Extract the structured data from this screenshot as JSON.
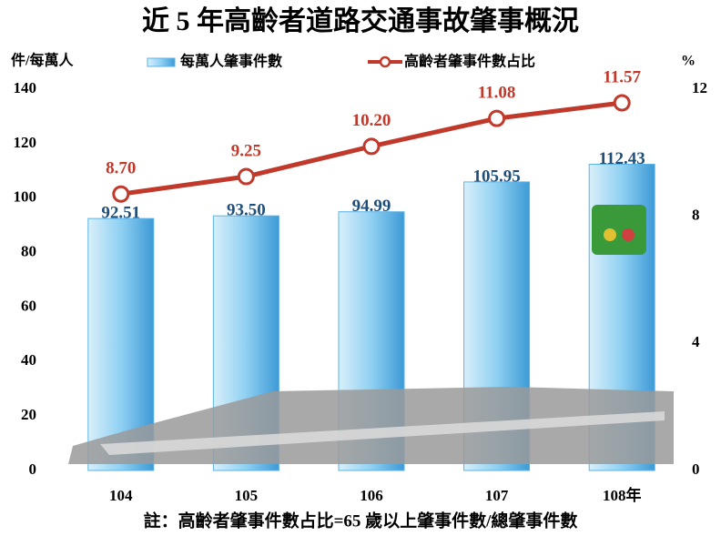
{
  "chart_data": {
    "type": "bar",
    "title": "近 5 年高齡者道路交通事故肇事概況",
    "y_label": "件/每萬人",
    "y2_label": "%",
    "footnote": "註：高齡者肇事件數占比=65 歲以上肇事件數/總肇事件數",
    "categories": [
      "104",
      "105",
      "106",
      "107",
      "108年"
    ],
    "series": [
      {
        "name": "每萬人肇事件數",
        "type": "bar",
        "color": "#5bb3e6",
        "values": [
          92.51,
          93.5,
          94.99,
          105.95,
          112.43
        ],
        "value_labels": [
          "92.51",
          "93.50",
          "94.99",
          "105.95",
          "112.43"
        ]
      },
      {
        "name": "高齡者肇事件數占比",
        "type": "line",
        "axis": "y2",
        "color": "#c0392b",
        "values": [
          8.7,
          9.25,
          10.2,
          11.08,
          11.57
        ],
        "value_labels": [
          "8.70",
          "9.25",
          "10.20",
          "11.08",
          "11.57"
        ]
      }
    ],
    "ylim": [
      0,
      140
    ],
    "yticks": [
      0,
      20,
      40,
      60,
      80,
      100,
      120,
      140
    ],
    "y2lim": [
      0,
      12
    ],
    "y2ticks": [
      0,
      4,
      8,
      12
    ]
  }
}
